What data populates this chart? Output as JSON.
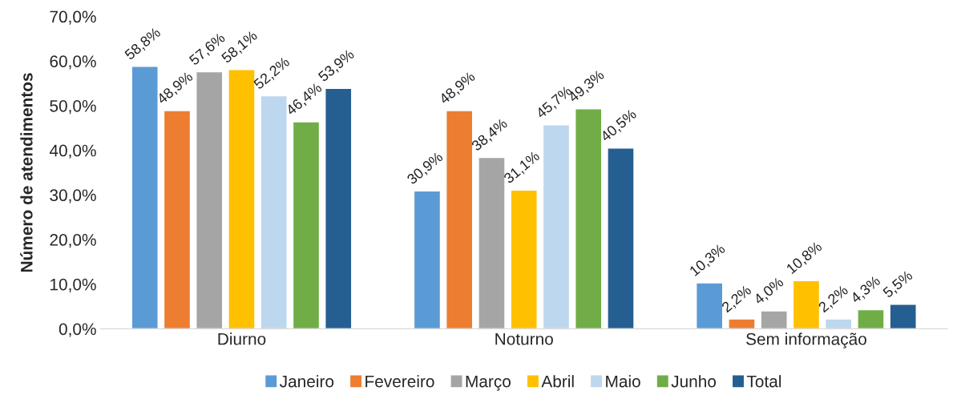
{
  "chart_data": {
    "type": "bar",
    "ylabel": "Número de atendimentos",
    "categories": [
      "Diurno",
      "Noturno",
      "Sem informação"
    ],
    "series": [
      {
        "name": "Janeiro",
        "color": "#5b9bd5",
        "values": [
          58.8,
          30.9,
          10.3
        ],
        "value_labels": [
          "58,8%",
          "30,9%",
          "10,3%"
        ]
      },
      {
        "name": "Fevereiro",
        "color": "#ed7d31",
        "values": [
          48.9,
          48.9,
          2.2
        ],
        "value_labels": [
          "48,9%",
          "48,9%",
          "2,2%"
        ]
      },
      {
        "name": "Março",
        "color": "#a5a5a5",
        "values": [
          57.6,
          38.4,
          4.0
        ],
        "value_labels": [
          "57,6%",
          "38,4%",
          "4,0%"
        ]
      },
      {
        "name": "Abril",
        "color": "#ffc000",
        "values": [
          58.1,
          31.1,
          10.8
        ],
        "value_labels": [
          "58,1%",
          "31,1%",
          "10,8%"
        ]
      },
      {
        "name": "Maio",
        "color": "#bdd7ee",
        "values": [
          52.2,
          45.7,
          2.2
        ],
        "value_labels": [
          "52,2%",
          "45,7%",
          "2,2%"
        ]
      },
      {
        "name": "Junho",
        "color": "#70ad47",
        "values": [
          46.4,
          49.3,
          4.3
        ],
        "value_labels": [
          "46,4%",
          "49,3%",
          "4,3%"
        ]
      },
      {
        "name": "Total",
        "color": "#255e91",
        "values": [
          53.9,
          40.5,
          5.5
        ],
        "value_labels": [
          "53,9%",
          "40,5%",
          "5,5%"
        ]
      }
    ],
    "ylim": [
      0,
      70
    ],
    "yticks": [
      {
        "value": 0,
        "label": "0,0%"
      },
      {
        "value": 10,
        "label": "10,0%"
      },
      {
        "value": 20,
        "label": "20,0%"
      },
      {
        "value": 30,
        "label": "30,0%"
      },
      {
        "value": 40,
        "label": "40,0%"
      },
      {
        "value": 50,
        "label": "50,0%"
      },
      {
        "value": 60,
        "label": "60,0%"
      },
      {
        "value": 70,
        "label": "70,0%"
      }
    ],
    "grid": false,
    "legend": "bottom"
  }
}
